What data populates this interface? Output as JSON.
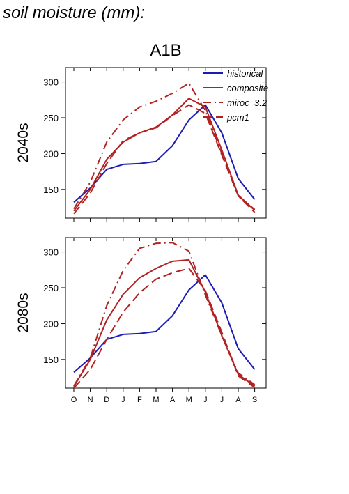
{
  "figure": {
    "header": "soil moisture (mm):",
    "scenario": "A1B"
  },
  "colors": {
    "historical": "#1c1cb4",
    "model": "#b22222",
    "axis": "#000000"
  },
  "legend": [
    {
      "label": "historical",
      "series": "historical"
    },
    {
      "label": "composite",
      "series": "composite"
    },
    {
      "label": "miroc_3.2",
      "series": "miroc_3.2"
    },
    {
      "label": "pcm1",
      "series": "pcm1"
    }
  ],
  "chart_data": [
    {
      "type": "line",
      "row_label": "2040s",
      "x": [
        "O",
        "N",
        "D",
        "J",
        "F",
        "M",
        "A",
        "M",
        "J",
        "J",
        "A",
        "S"
      ],
      "ylim": [
        110,
        320
      ],
      "yticks": [
        150,
        200,
        250,
        300
      ],
      "legend_position": "top-right",
      "series": [
        {
          "name": "historical",
          "style": "solid",
          "color": "#1c1cb4",
          "values": [
            132,
            152,
            178,
            185,
            186,
            189,
            211,
            247,
            268,
            229,
            165,
            136
          ]
        },
        {
          "name": "composite",
          "style": "solid",
          "color": "#b22222",
          "values": [
            120,
            150,
            192,
            216,
            229,
            237,
            254,
            277,
            265,
            205,
            142,
            121
          ]
        },
        {
          "name": "miroc_3.2",
          "style": "dashdot",
          "color": "#b22222",
          "values": [
            123,
            160,
            216,
            247,
            265,
            273,
            284,
            298,
            260,
            200,
            141,
            122
          ]
        },
        {
          "name": "pcm1",
          "style": "dash",
          "color": "#b22222",
          "values": [
            116,
            145,
            186,
            218,
            229,
            236,
            253,
            268,
            256,
            198,
            141,
            118
          ]
        }
      ]
    },
    {
      "type": "line",
      "row_label": "2080s",
      "x": [
        "O",
        "N",
        "D",
        "J",
        "F",
        "M",
        "A",
        "M",
        "J",
        "J",
        "A",
        "S"
      ],
      "ylim": [
        110,
        320
      ],
      "yticks": [
        150,
        200,
        250,
        300
      ],
      "legend_position": "none",
      "series": [
        {
          "name": "historical",
          "style": "solid",
          "color": "#1c1cb4",
          "values": [
            132,
            152,
            178,
            185,
            186,
            189,
            211,
            247,
            268,
            229,
            165,
            136
          ]
        },
        {
          "name": "composite",
          "style": "solid",
          "color": "#b22222",
          "values": [
            112,
            150,
            205,
            241,
            264,
            277,
            287,
            289,
            244,
            183,
            129,
            113
          ]
        },
        {
          "name": "miroc_3.2",
          "style": "dashdot",
          "color": "#b22222",
          "values": [
            113,
            152,
            225,
            274,
            305,
            312,
            313,
            301,
            240,
            183,
            131,
            115
          ]
        },
        {
          "name": "pcm1",
          "style": "dash",
          "color": "#b22222",
          "values": [
            110,
            136,
            178,
            216,
            243,
            262,
            271,
            277,
            246,
            188,
            127,
            111
          ]
        }
      ]
    }
  ]
}
